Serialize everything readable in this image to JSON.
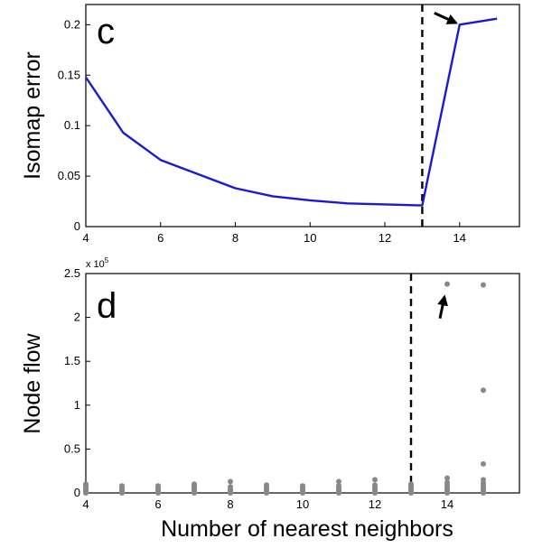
{
  "chart_data": [
    {
      "type": "line",
      "panel_label": "c",
      "title": "",
      "xlabel": "",
      "ylabel": "Isomap error",
      "xlim": [
        4,
        15.6
      ],
      "ylim": [
        0,
        0.22
      ],
      "xticks": [
        4,
        6,
        8,
        10,
        12,
        14
      ],
      "xtick_labels": [
        "4",
        "6",
        "8",
        "10",
        "12",
        "14"
      ],
      "yticks": [
        0,
        0.05,
        0.1,
        0.15,
        0.2
      ],
      "ytick_labels": [
        "0",
        "0.05",
        "0.1",
        "0.15",
        "0.2"
      ],
      "grid": false,
      "series": [
        {
          "color": "#1a1ad6",
          "x": [
            4,
            5,
            6,
            7,
            8,
            9,
            10,
            11,
            12,
            13,
            14,
            15
          ],
          "y": [
            0.148,
            0.093,
            0.066,
            0.052,
            0.038,
            0.03,
            0.026,
            0.023,
            0.022,
            0.021,
            0.2,
            0.206
          ]
        }
      ],
      "vline_x": 13,
      "arrow": "pointing at the point x=14"
    },
    {
      "type": "scatter",
      "panel_label": "d",
      "title": "",
      "xlabel": "Number of nearest neighbors",
      "ylabel": "Node flow",
      "scale_label": "x 10",
      "scale_exponent": "5",
      "xlim": [
        4,
        16
      ],
      "ylim": [
        0,
        2.5
      ],
      "xticks": [
        4,
        6,
        8,
        10,
        12,
        14
      ],
      "xtick_labels": [
        "4",
        "6",
        "8",
        "10",
        "12",
        "14"
      ],
      "yticks": [
        0,
        0.5,
        1,
        1.5,
        2,
        2.5
      ],
      "ytick_labels": [
        "0",
        "0.5",
        "1",
        "1.5",
        "2",
        "2.5"
      ],
      "grid": false,
      "marker_color": "#888888",
      "points": [
        [
          4,
          0.0
        ],
        [
          4,
          0.02
        ],
        [
          4,
          0.04
        ],
        [
          4,
          0.06
        ],
        [
          4,
          0.08
        ],
        [
          4,
          0.1
        ],
        [
          5,
          0.0
        ],
        [
          5,
          0.02
        ],
        [
          5,
          0.04
        ],
        [
          5,
          0.06
        ],
        [
          5,
          0.08
        ],
        [
          6,
          0.0
        ],
        [
          6,
          0.02
        ],
        [
          6,
          0.04
        ],
        [
          6,
          0.06
        ],
        [
          6,
          0.08
        ],
        [
          7,
          0.0
        ],
        [
          7,
          0.02
        ],
        [
          7,
          0.04
        ],
        [
          7,
          0.06
        ],
        [
          7,
          0.08
        ],
        [
          7,
          0.1
        ],
        [
          8,
          0.0
        ],
        [
          8,
          0.02
        ],
        [
          8,
          0.04
        ],
        [
          8,
          0.07
        ],
        [
          8,
          0.13
        ],
        [
          9,
          0.0
        ],
        [
          9,
          0.02
        ],
        [
          9,
          0.04
        ],
        [
          9,
          0.06
        ],
        [
          9,
          0.09
        ],
        [
          10,
          0.0
        ],
        [
          10,
          0.02
        ],
        [
          10,
          0.04
        ],
        [
          10,
          0.06
        ],
        [
          10,
          0.08
        ],
        [
          11,
          0.0
        ],
        [
          11,
          0.02
        ],
        [
          11,
          0.04
        ],
        [
          11,
          0.06
        ],
        [
          11,
          0.08
        ],
        [
          11,
          0.13
        ],
        [
          12,
          0.0
        ],
        [
          12,
          0.02
        ],
        [
          12,
          0.04
        ],
        [
          12,
          0.06
        ],
        [
          12,
          0.09
        ],
        [
          12,
          0.15
        ],
        [
          13,
          0.0
        ],
        [
          13,
          0.02
        ],
        [
          13,
          0.04
        ],
        [
          13,
          0.06
        ],
        [
          13,
          0.08
        ],
        [
          13,
          0.1
        ],
        [
          14,
          0.0
        ],
        [
          14,
          0.02
        ],
        [
          14,
          0.04
        ],
        [
          14,
          0.06
        ],
        [
          14,
          0.09
        ],
        [
          14,
          0.12
        ],
        [
          14,
          0.17
        ],
        [
          14,
          2.38
        ],
        [
          15,
          0.0
        ],
        [
          15,
          0.02
        ],
        [
          15,
          0.04
        ],
        [
          15,
          0.06
        ],
        [
          15,
          0.08
        ],
        [
          15,
          0.11
        ],
        [
          15,
          0.15
        ],
        [
          15,
          0.33
        ],
        [
          15,
          1.17
        ],
        [
          15,
          2.37
        ]
      ],
      "vline_x": 13,
      "arrow": "pointing at the point x=14, y=2.38"
    }
  ]
}
